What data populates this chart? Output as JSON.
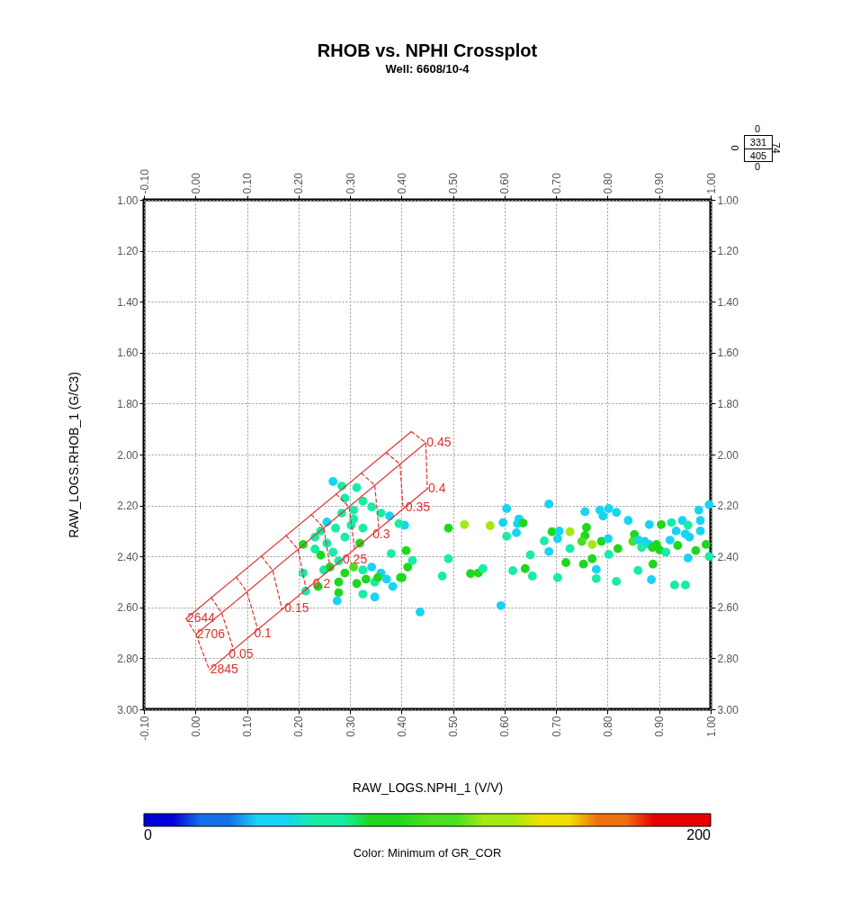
{
  "chart_data": {
    "type": "scatter",
    "title": "RHOB vs. NPHI Crossplot",
    "subtitle": "Well: 6608/10-4",
    "xlabel": "RAW_LOGS.NPHI_1 (V/V)",
    "ylabel": "RAW_LOGS.RHOB_1 (G/C3)",
    "clabel": "Color: Minimum of GR_COR",
    "clim": [
      0,
      200
    ],
    "cticks": [
      0,
      200
    ],
    "xlim": [
      -0.1,
      1.0
    ],
    "ylim": [
      3.0,
      1.0
    ],
    "x2lim": [
      -0.1,
      1.0
    ],
    "y2lim": [
      3.0,
      1.0
    ],
    "xticks": [
      {
        "value": -0.1,
        "label": "-0.10"
      },
      {
        "value": 0,
        "label": "0.00"
      },
      {
        "value": 0.1,
        "label": "0.10"
      },
      {
        "value": 0.2,
        "label": "0.20"
      },
      {
        "value": 0.3,
        "label": "0.30"
      },
      {
        "value": 0.4,
        "label": "0.40"
      },
      {
        "value": 0.5,
        "label": "0.50"
      },
      {
        "value": 0.6,
        "label": "0.60"
      },
      {
        "value": 0.7,
        "label": "0.70"
      },
      {
        "value": 0.8,
        "label": "0.80"
      },
      {
        "value": 0.9,
        "label": "0.90"
      },
      {
        "value": 1.0,
        "label": "1.00"
      }
    ],
    "x2ticks": [
      {
        "value": -0.1,
        "label": "-0.10"
      },
      {
        "value": 0,
        "label": "0.00"
      },
      {
        "value": 0.1,
        "label": "0.10"
      },
      {
        "value": 0.2,
        "label": "0.20"
      },
      {
        "value": 0.3,
        "label": "0.30"
      },
      {
        "value": 0.4,
        "label": "0.40"
      },
      {
        "value": 0.5,
        "label": "0.50"
      },
      {
        "value": 0.6,
        "label": "0.60"
      },
      {
        "value": 0.7,
        "label": "0.70"
      },
      {
        "value": 0.8,
        "label": "0.80"
      },
      {
        "value": 0.9,
        "label": "0.90"
      },
      {
        "value": 1.0,
        "label": "1.00"
      }
    ],
    "yticks": [
      {
        "value": 1.0,
        "label": "1.00"
      },
      {
        "value": 1.2,
        "label": "1.20"
      },
      {
        "value": 1.4,
        "label": "1.40"
      },
      {
        "value": 1.6,
        "label": "1.60"
      },
      {
        "value": 1.8,
        "label": "1.80"
      },
      {
        "value": 2.0,
        "label": "2.00"
      },
      {
        "value": 2.2,
        "label": "2.20"
      },
      {
        "value": 2.4,
        "label": "2.40"
      },
      {
        "value": 2.6,
        "label": "2.60"
      },
      {
        "value": 2.8,
        "label": "2.80"
      },
      {
        "value": 3.0,
        "label": "3.00"
      }
    ],
    "y2ticks": [
      {
        "value": 1.0,
        "label": "1.00"
      },
      {
        "value": 1.2,
        "label": "1.20"
      },
      {
        "value": 1.4,
        "label": "1.40"
      },
      {
        "value": 1.6,
        "label": "1.60"
      },
      {
        "value": 1.8,
        "label": "1.80"
      },
      {
        "value": 2.0,
        "label": "2.00"
      },
      {
        "value": 2.2,
        "label": "2.20"
      },
      {
        "value": 2.4,
        "label": "2.40"
      },
      {
        "value": 2.6,
        "label": "2.60"
      },
      {
        "value": 2.8,
        "label": "2.80"
      },
      {
        "value": 3.0,
        "label": "3.00"
      }
    ],
    "grid": true,
    "series": [
      {
        "type": "scatter",
        "marker": "circle",
        "x": [
          0.604,
          0.686,
          0.756,
          0.785,
          0.802,
          0.817,
          0.791,
          0.977,
          0.997,
          0.491,
          0.522,
          0.572,
          0.597,
          0.625,
          0.628,
          0.636,
          0.604,
          0.623,
          0.692,
          0.706,
          0.727,
          0.703,
          0.677,
          0.759,
          0.756,
          0.75,
          0.77,
          0.788,
          0.801,
          0.727,
          0.686,
          0.82,
          0.802,
          0.84,
          0.852,
          0.849,
          0.86,
          0.872,
          0.866,
          0.881,
          0.881,
          0.887,
          0.895,
          0.904,
          0.901,
          0.913,
          0.921,
          0.924,
          0.936,
          0.933,
          0.945,
          0.951,
          0.956,
          0.959,
          0.98,
          0.98,
          0.971,
          0.956,
          0.991,
          0.997,
          0.409,
          0.412,
          0.421,
          0.398,
          0.491,
          0.479,
          0.534,
          0.549,
          0.558,
          0.616,
          0.64,
          0.654,
          0.65,
          0.703,
          0.719,
          0.753,
          0.77,
          0.778,
          0.778,
          0.817,
          0.859,
          0.885,
          0.888,
          0.93,
          0.951,
          0.593,
          0.436,
          0.267,
          0.284,
          0.313,
          0.29,
          0.325,
          0.255,
          0.284,
          0.307,
          0.342,
          0.36,
          0.377,
          0.406,
          0.395,
          0.243,
          0.272,
          0.302,
          0.325,
          0.29,
          0.255,
          0.232,
          0.209,
          0.267,
          0.243,
          0.232,
          0.278,
          0.319,
          0.307,
          0.38,
          0.209,
          0.307,
          0.29,
          0.325,
          0.342,
          0.36,
          0.371,
          0.383,
          0.348,
          0.331,
          0.313,
          0.278,
          0.238,
          0.278,
          0.325,
          0.348,
          0.275,
          0.214,
          0.401,
          0.354,
          0.249,
          0.261
        ],
        "values": [
          2.212,
          2.194,
          2.224,
          2.218,
          2.212,
          2.227,
          2.241,
          2.218,
          2.197,
          2.289,
          2.275,
          2.279,
          2.267,
          2.271,
          2.253,
          2.269,
          2.321,
          2.307,
          2.303,
          2.3,
          2.303,
          2.33,
          2.339,
          2.286,
          2.318,
          2.341,
          2.353,
          2.341,
          2.33,
          2.369,
          2.381,
          2.369,
          2.392,
          2.259,
          2.314,
          2.341,
          2.336,
          2.341,
          2.365,
          2.275,
          2.353,
          2.365,
          2.353,
          2.275,
          2.375,
          2.383,
          2.336,
          2.267,
          2.357,
          2.3,
          2.259,
          2.312,
          2.277,
          2.324,
          2.259,
          2.3,
          2.377,
          2.406,
          2.353,
          2.4,
          2.377,
          2.442,
          2.416,
          2.483,
          2.409,
          2.477,
          2.467,
          2.465,
          2.448,
          2.456,
          2.448,
          2.477,
          2.394,
          2.483,
          2.424,
          2.43,
          2.409,
          2.451,
          2.487,
          2.498,
          2.455,
          2.491,
          2.43,
          2.512,
          2.512,
          2.593,
          2.618,
          2.106,
          2.124,
          2.13,
          2.171,
          2.183,
          2.265,
          2.23,
          2.218,
          2.206,
          2.23,
          2.241,
          2.277,
          2.271,
          2.3,
          2.289,
          2.277,
          2.289,
          2.324,
          2.348,
          2.324,
          2.353,
          2.383,
          2.395,
          2.371,
          2.418,
          2.348,
          2.253,
          2.389,
          2.465,
          2.442,
          2.465,
          2.453,
          2.442,
          2.465,
          2.489,
          2.518,
          2.501,
          2.489,
          2.506,
          2.501,
          2.518,
          2.542,
          2.548,
          2.559,
          2.574,
          2.536,
          2.483,
          2.483,
          2.453,
          2.442
        ],
        "colors": [
          "#18d4f2",
          "#18d4f2",
          "#18d4f2",
          "#18d4f2",
          "#18d4f2",
          "#18d4f2",
          "#18d4f2",
          "#18d4f2",
          "#18d4f2",
          "#1ed81e",
          "#a4e814",
          "#a4e814",
          "#18d4f2",
          "#18d4f2",
          "#18d4f2",
          "#1ed81e",
          "#18eca6",
          "#18d4f2",
          "#1ed81e",
          "#18d4f2",
          "#a4e814",
          "#18d4f2",
          "#18eca6",
          "#1ed81e",
          "#1ed81e",
          "#48e020",
          "#a4e814",
          "#1ed81e",
          "#18d4f2",
          "#18eca6",
          "#18d4f2",
          "#1ed81e",
          "#18eca6",
          "#18d4f2",
          "#1ed81e",
          "#48e020",
          "#18d4f2",
          "#18d4f2",
          "#18eca6",
          "#18d4f2",
          "#18d4f2",
          "#1ed81e",
          "#1ed81e",
          "#1ed81e",
          "#1ed81e",
          "#18eca6",
          "#18d4f2",
          "#18eca6",
          "#1ed81e",
          "#18d4f2",
          "#18d4f2",
          "#18d4f2",
          "#18eca6",
          "#18d4f2",
          "#18d4f2",
          "#18d4f2",
          "#1ed81e",
          "#18d4f2",
          "#1ed81e",
          "#18eca6",
          "#1ed81e",
          "#1ed81e",
          "#18eca6",
          "#1ed81e",
          "#18eca6",
          "#18eca6",
          "#1ed81e",
          "#1ed81e",
          "#18eca6",
          "#18eca6",
          "#1ed81e",
          "#18eca6",
          "#18eca6",
          "#18eca6",
          "#1ed81e",
          "#1ed81e",
          "#1ed81e",
          "#18d4f2",
          "#18eca6",
          "#18eca6",
          "#18eca6",
          "#18d4f2",
          "#1ed81e",
          "#18eca6",
          "#18eca6",
          "#18d4f2",
          "#18d4f2",
          "#18d4f2",
          "#18eca6",
          "#18eca6",
          "#18eca6",
          "#18eca6",
          "#18d4f2",
          "#18eca6",
          "#18eca6",
          "#18eca6",
          "#18eca6",
          "#18d4f2",
          "#18d4f2",
          "#18eca6",
          "#18eca6",
          "#18eca6",
          "#18eca6",
          "#18eca6",
          "#18eca6",
          "#18eca6",
          "#18eca6",
          "#1ed81e",
          "#18eca6",
          "#1ed81e",
          "#18eca6",
          "#18eca6",
          "#1ed81e",
          "#18eca6",
          "#18eca6",
          "#18eca6",
          "#48e020",
          "#1ed81e",
          "#18eca6",
          "#18d4f2",
          "#18d4f2",
          "#18d4f2",
          "#18d4f2",
          "#18eca6",
          "#1ed81e",
          "#1ed81e",
          "#1ed81e",
          "#1ed81e",
          "#1ed81e",
          "#18eca6",
          "#18d4f2",
          "#18d4f2",
          "#18eca6",
          "#1ed81e",
          "#1ed81e",
          "#18eca6",
          "#1ed81e"
        ],
        "cvalues": [
          50,
          50,
          50,
          50,
          50,
          50,
          50,
          50,
          50,
          90,
          130,
          130,
          50,
          50,
          50,
          90,
          70,
          50,
          90,
          50,
          130,
          50,
          70,
          90,
          90,
          110,
          130,
          90,
          50,
          70,
          50,
          90,
          70,
          50,
          90,
          110,
          50,
          50,
          70,
          50,
          50,
          90,
          90,
          90,
          90,
          70,
          50,
          70,
          90,
          50,
          50,
          50,
          70,
          50,
          50,
          50,
          90,
          50,
          90,
          70,
          90,
          90,
          70,
          90,
          70,
          70,
          90,
          90,
          70,
          70,
          90,
          70,
          70,
          70,
          90,
          90,
          90,
          50,
          70,
          70,
          70,
          50,
          90,
          70,
          70,
          50,
          50,
          50,
          70,
          70,
          70,
          70,
          50,
          70,
          70,
          70,
          70,
          50,
          50,
          70,
          70,
          70,
          70,
          70,
          70,
          70,
          70,
          90,
          70,
          90,
          70,
          70,
          90,
          70,
          70,
          70,
          110,
          90,
          70,
          50,
          50,
          50,
          50,
          70,
          90,
          90,
          90,
          90,
          90,
          70,
          50,
          50,
          70,
          90,
          90,
          70,
          90
        ]
      },
      {
        "type": "line",
        "color": "#e03030",
        "line_style": "solid",
        "marker": "none",
        "x": [
          -0.018,
          0.419
        ],
        "values": [
          2.644,
          1.91
        ]
      },
      {
        "type": "line",
        "color": "#e03030",
        "line_style": "solid",
        "marker": "none",
        "x": [
          0.001,
          0.447
        ],
        "values": [
          2.706,
          1.954
        ]
      },
      {
        "type": "line",
        "color": "#e03030",
        "line_style": "solid",
        "marker": "none",
        "x": [
          0.027,
          0.45
        ],
        "values": [
          2.845,
          2.134
        ]
      },
      {
        "type": "line",
        "color": "#e03030",
        "line_style": "dashed",
        "marker": "none",
        "x": [
          -0.018,
          0.001,
          0.027
        ],
        "values": [
          2.644,
          2.706,
          2.845
        ]
      },
      {
        "type": "line",
        "color": "#e03030",
        "line_style": "dashed",
        "marker": "none",
        "x": [
          0.031,
          0.051,
          0.074
        ],
        "values": [
          2.562,
          2.622,
          2.766
        ]
      },
      {
        "type": "line",
        "color": "#e03030",
        "line_style": "dashed",
        "marker": "none",
        "x": [
          0.079,
          0.1,
          0.121
        ],
        "values": [
          2.481,
          2.539,
          2.687
        ]
      },
      {
        "type": "line",
        "color": "#e03030",
        "line_style": "dashed",
        "marker": "none",
        "x": [
          0.128,
          0.15,
          0.168
        ],
        "values": [
          2.399,
          2.455,
          2.608
        ]
      },
      {
        "type": "line",
        "color": "#e03030",
        "line_style": "dashed",
        "marker": "none",
        "x": [
          0.176,
          0.199,
          0.215
        ],
        "values": [
          2.318,
          2.372,
          2.529
        ]
      },
      {
        "type": "line",
        "color": "#e03030",
        "line_style": "dashed",
        "marker": "none",
        "x": [
          0.225,
          0.249,
          0.262
        ],
        "values": [
          2.236,
          2.288,
          2.45
        ]
      },
      {
        "type": "line",
        "color": "#e03030",
        "line_style": "dashed",
        "marker": "none",
        "x": [
          0.273,
          0.298,
          0.309
        ],
        "values": [
          2.155,
          2.205,
          2.371
        ]
      },
      {
        "type": "line",
        "color": "#e03030",
        "line_style": "dashed",
        "marker": "none",
        "x": [
          0.322,
          0.348,
          0.356
        ],
        "values": [
          2.073,
          2.121,
          2.292
        ]
      },
      {
        "type": "line",
        "color": "#e03030",
        "line_style": "dashed",
        "marker": "none",
        "x": [
          0.37,
          0.397,
          0.403
        ],
        "values": [
          1.992,
          2.038,
          2.213
        ]
      },
      {
        "type": "line",
        "color": "#e03030",
        "line_style": "dashed",
        "marker": "none",
        "x": [
          0.419,
          0.447,
          0.45
        ],
        "values": [
          1.91,
          1.954,
          2.134
        ]
      }
    ],
    "annotations": [
      {
        "text": "0.45",
        "x": 0.447,
        "y": 1.954
      },
      {
        "text": "0.4",
        "x": 0.45,
        "y": 2.134
      },
      {
        "text": "0.35",
        "x": 0.406,
        "y": 2.208
      },
      {
        "text": "0.3",
        "x": 0.342,
        "y": 2.315
      },
      {
        "text": "0.25",
        "x": 0.284,
        "y": 2.413
      },
      {
        "text": "0.2",
        "x": 0.226,
        "y": 2.51
      },
      {
        "text": "0.15",
        "x": 0.171,
        "y": 2.603
      },
      {
        "text": "0.1",
        "x": 0.112,
        "y": 2.702
      },
      {
        "text": "0.05",
        "x": 0.063,
        "y": 2.784
      },
      {
        "text": "2644",
        "x": -0.018,
        "y": 2.644
      },
      {
        "text": "2706",
        "x": 0.001,
        "y": 2.706
      },
      {
        "text": "2845",
        "x": 0.027,
        "y": 2.845
      },
      "0",
      "0",
      "331",
      "405",
      "74",
      "0"
    ]
  }
}
